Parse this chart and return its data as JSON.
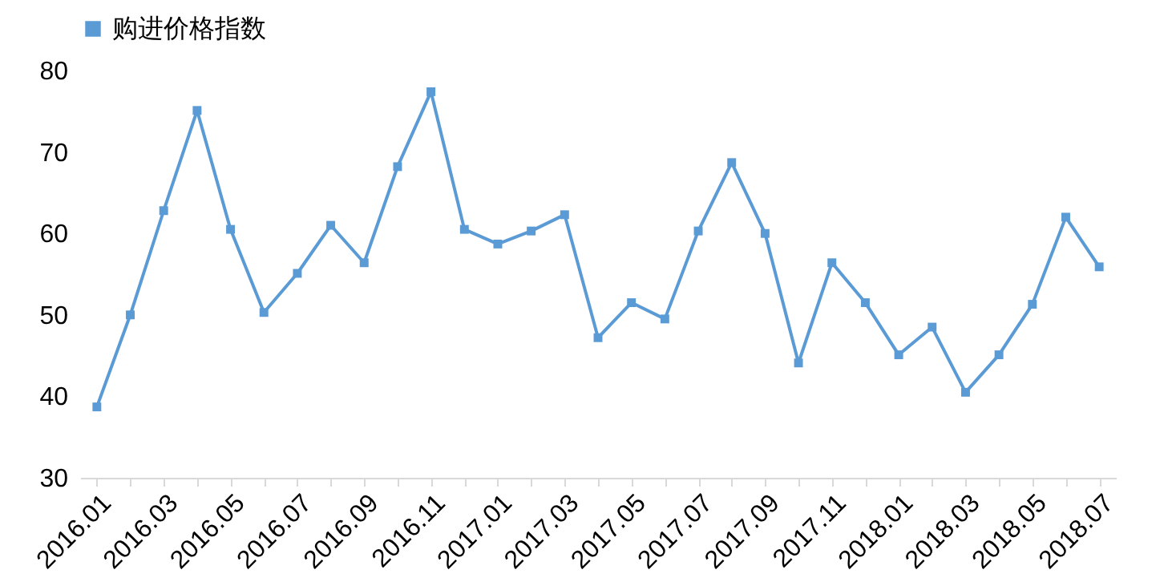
{
  "chart_data": {
    "type": "line",
    "categories": [
      "2016.01",
      null,
      "2016.03",
      null,
      "2016.05",
      null,
      "2016.07",
      null,
      "2016.09",
      null,
      "2016.11",
      null,
      "2017.01",
      null,
      "2017.03",
      null,
      "2017.05",
      null,
      "2017.07",
      null,
      "2017.09",
      null,
      "2017.11",
      null,
      "2018.01",
      null,
      "2018.03",
      null,
      "2018.05",
      null,
      "2018.07"
    ],
    "series": [
      {
        "name": "购进价格指数",
        "color": "#5b9bd5",
        "values": [
          38.7,
          50,
          62.8,
          75.1,
          60.5,
          50.3,
          55.1,
          61,
          56.4,
          68.2,
          77.4,
          60.5,
          58.7,
          60.3,
          62.3,
          47.2,
          51.5,
          49.5,
          60.3,
          68.7,
          60,
          44.1,
          56.4,
          51.5,
          45.1,
          48.5,
          40.5,
          45.1,
          51.3,
          62,
          55.9
        ]
      }
    ],
    "ylim": [
      30,
      80
    ],
    "yticks": [
      30,
      40,
      50,
      60,
      70,
      80
    ],
    "grid": false,
    "legend": "top",
    "marker": "square",
    "line_style": "solid"
  }
}
